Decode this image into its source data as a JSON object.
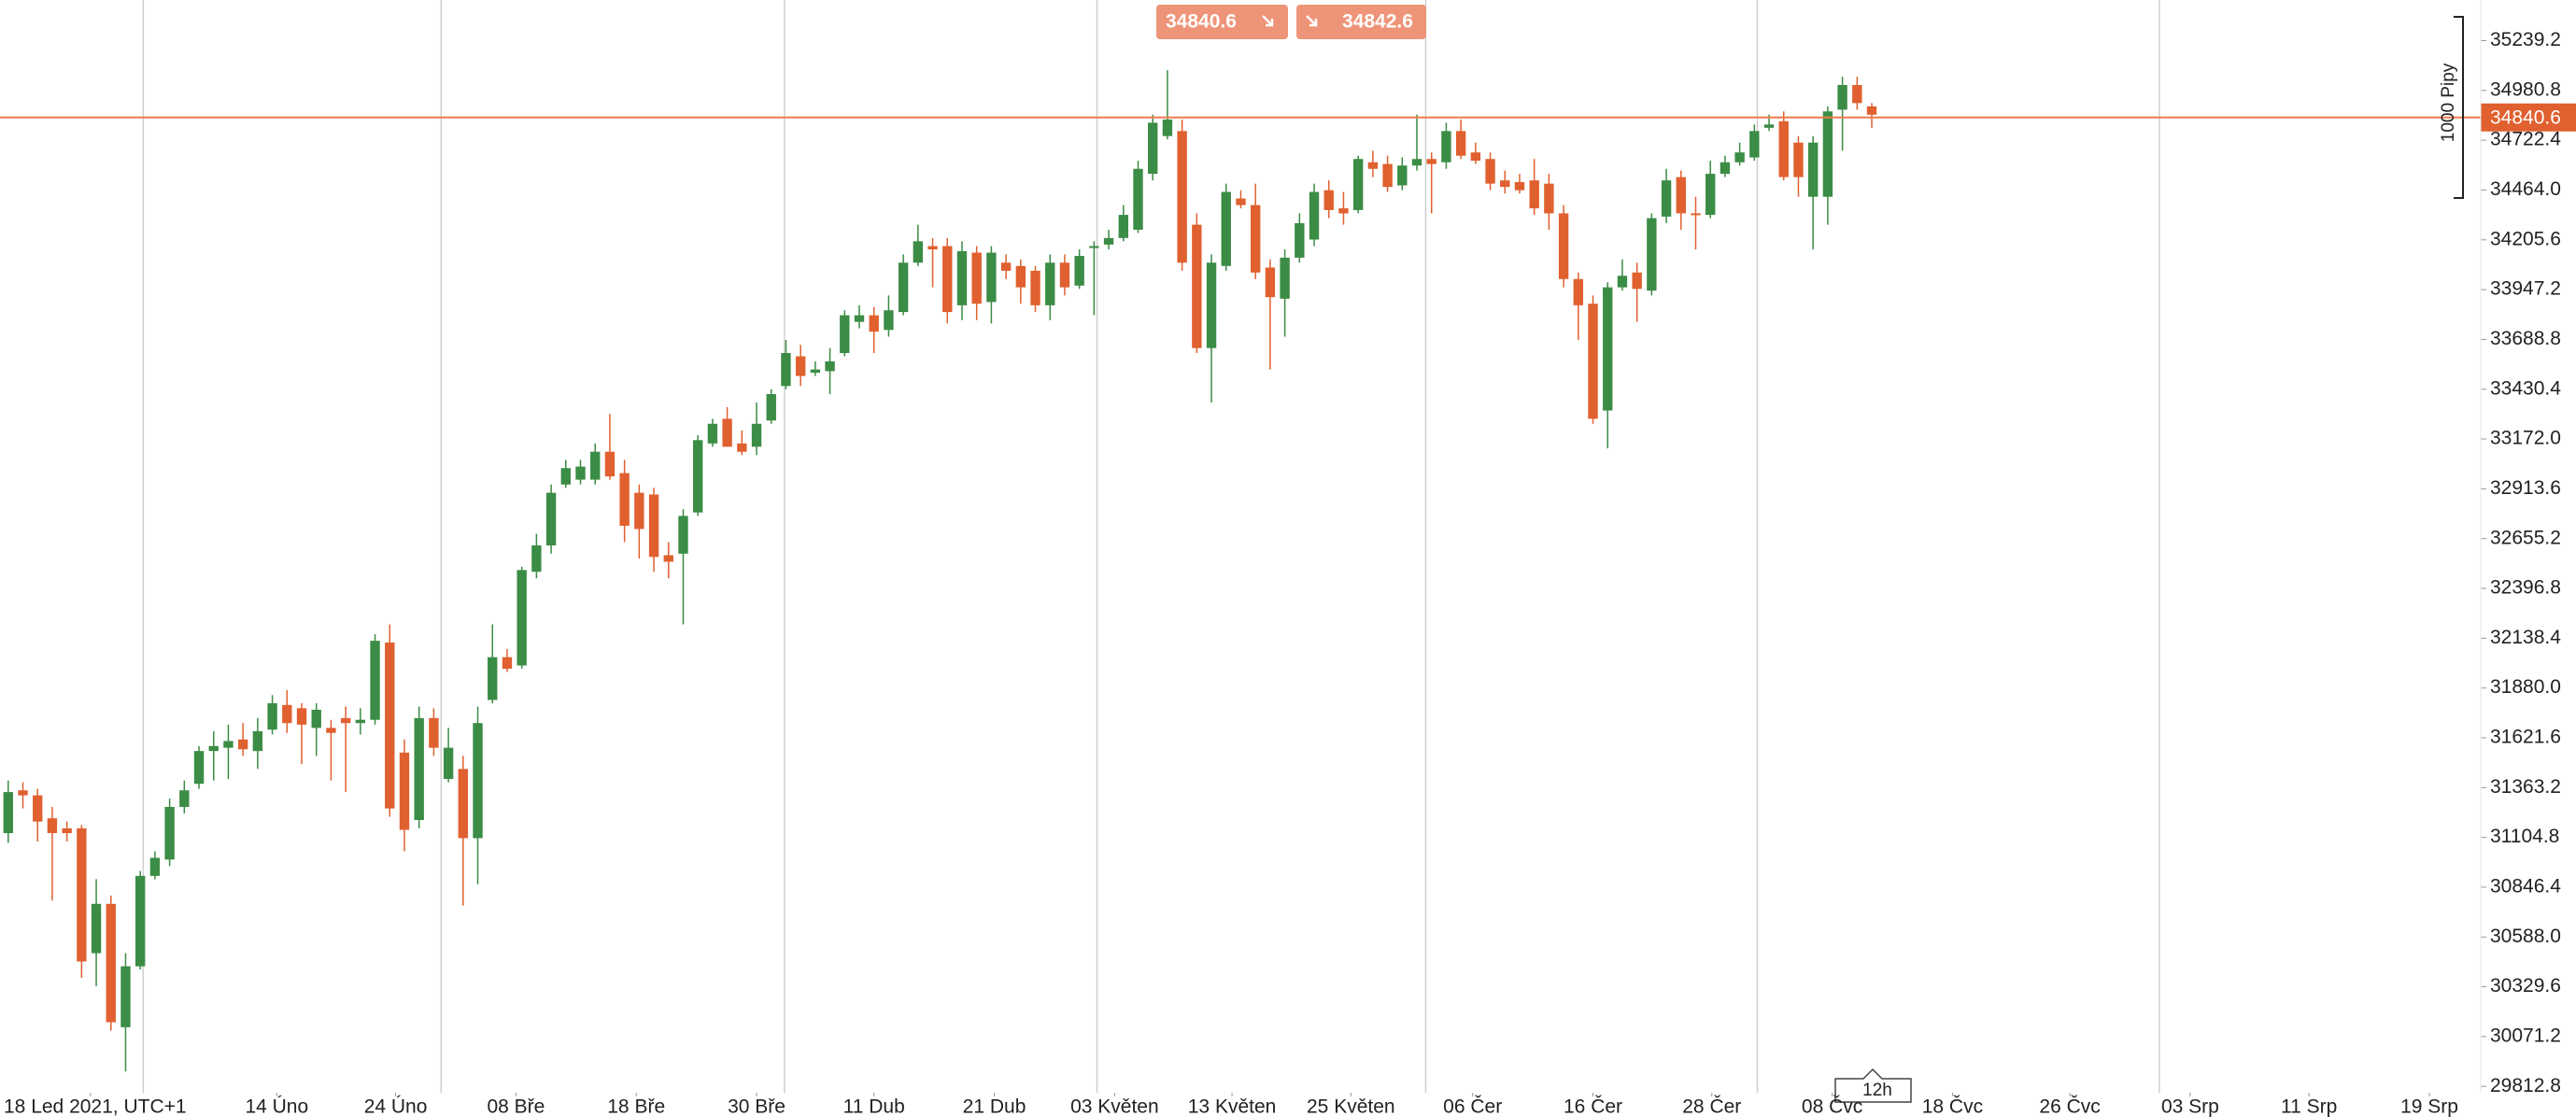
{
  "chart_data": {
    "type": "candlestick",
    "up_color": "#3b8c45",
    "down_color": "#e0602f",
    "xlim": [
      -0.56,
      168.5
    ],
    "ylim": [
      29780,
      35450
    ],
    "yticks": [
      35239.2,
      34980.8,
      34722.4,
      {
        "value": 34464,
        "label": "34464.0"
      },
      34205.6,
      33947.2,
      33688.8,
      33430.4,
      {
        "value": 33172,
        "label": "33172.0"
      },
      32913.6,
      32655.2,
      32396.8,
      32138.4,
      {
        "value": 31880,
        "label": "31880.0"
      },
      31621.6,
      31363.2,
      31104.8,
      30846.4,
      {
        "value": 30588,
        "label": "30588.0"
      },
      30329.6,
      30071.2,
      29812.8
    ],
    "xticks": [
      {
        "value": 5.6,
        "label": "18 Led 2021, UTC+1"
      },
      {
        "value": 18.3,
        "label": "14 Úno"
      },
      {
        "value": 26.4,
        "label": "24 Úno"
      },
      {
        "value": 34.6,
        "label": "08 Bře"
      },
      {
        "value": 42.8,
        "label": "18 Bře"
      },
      {
        "value": 51,
        "label": "30 Bře"
      },
      {
        "value": 59,
        "label": "11 Dub"
      },
      {
        "value": 67.2,
        "label": "21 Dub"
      },
      {
        "value": 75.4,
        "label": "03 Květen"
      },
      {
        "value": 83.4,
        "label": "13 Květen"
      },
      {
        "value": 91.5,
        "label": "25 Květen"
      },
      {
        "value": 99.8,
        "label": "06 Čer"
      },
      {
        "value": 108,
        "label": "16 Čer"
      },
      {
        "value": 116.1,
        "label": "28 Čer"
      },
      {
        "value": 124.3,
        "label": "08 Čvc"
      },
      {
        "value": 132.5,
        "label": "18 Čvc"
      },
      {
        "value": 140.5,
        "label": "26 Čvc"
      },
      {
        "value": 148.7,
        "label": "03 Srp"
      },
      {
        "value": 156.8,
        "label": "11 Srp"
      },
      {
        "value": 165,
        "label": "19 Srp"
      }
    ],
    "period_lines": [
      9.2,
      29.5,
      52.9,
      74.2,
      96.6,
      119.2,
      146.6
    ],
    "open": [
      31127,
      31349,
      31323,
      31204,
      31152,
      31152,
      30504,
      30760,
      30120,
      30436,
      30905,
      30990,
      31263,
      31383,
      31553,
      31570,
      31613,
      31553,
      31664,
      31792,
      31775,
      31673,
      31673,
      31724,
      31698,
      31715,
      32116,
      31545,
      31195,
      31724,
      31408,
      31460,
      31101,
      31818,
      32040,
      31997,
      32483,
      32620,
      32936,
      32961,
      32961,
      33106,
      32995,
      32893,
      32884,
      32569,
      32577,
      32791,
      33149,
      33277,
      33149,
      33132,
      33268,
      33447,
      33601,
      33516,
      33524,
      33618,
      33780,
      33814,
      33738,
      33831,
      34087,
      34173,
      34173,
      33866,
      34139,
      33883,
      34087,
      34070,
      34045,
      33866,
      34087,
      33968,
      34164,
      34181,
      34215,
      34258,
      34548,
      34744,
      34770,
      34284,
      33644,
      34070,
      34420,
      34386,
      34062,
      33900,
      34113,
      34207,
      34463,
      34369,
      34360,
      34608,
      34599,
      34488,
      34591,
      34625,
      34608,
      34770,
      34659,
      34625,
      34514,
      34505,
      34514,
      34497,
      34343,
      34002,
      33874,
      33320,
      33959,
      34036,
      33942,
      34326,
      34531,
      34343,
      34335,
      34548,
      34608,
      34633,
      34787,
      34821,
      34710,
      34429,
      34429,
      34881,
      35009,
      34898
    ],
    "high": [
      31400,
      31391,
      31357,
      31263,
      31187,
      31169,
      30888,
      30803,
      30504,
      30931,
      31033,
      31306,
      31400,
      31579,
      31656,
      31690,
      31698,
      31724,
      31843,
      31869,
      31801,
      31801,
      31715,
      31784,
      31775,
      32159,
      32210,
      31613,
      31784,
      31775,
      31673,
      31528,
      31784,
      32210,
      32082,
      32509,
      32680,
      32936,
      33064,
      33064,
      33149,
      33302,
      33064,
      32936,
      32919,
      32637,
      32808,
      33192,
      33277,
      33337,
      33217,
      33362,
      33430,
      33686,
      33661,
      33575,
      33644,
      33840,
      33866,
      33857,
      33917,
      34130,
      34284,
      34215,
      34215,
      34198,
      34173,
      34173,
      34130,
      34104,
      34070,
      34130,
      34130,
      34156,
      34198,
      34258,
      34386,
      34616,
      34855,
      35086,
      34830,
      34343,
      34130,
      34497,
      34463,
      34497,
      34104,
      34156,
      34343,
      34497,
      34514,
      34454,
      34642,
      34668,
      34642,
      34633,
      34855,
      34659,
      34813,
      34830,
      34710,
      34659,
      34565,
      34548,
      34625,
      34548,
      34386,
      34036,
      33917,
      33985,
      34104,
      34087,
      34343,
      34574,
      34565,
      34429,
      34616,
      34642,
      34710,
      34804,
      34855,
      34872,
      34744,
      34744,
      34898,
      35052,
      35052,
      34915
    ],
    "low": [
      31076,
      31255,
      31084,
      30777,
      31084,
      30376,
      30333,
      30103,
      29890,
      30419,
      30888,
      30956,
      31229,
      31357,
      31400,
      31408,
      31528,
      31460,
      31639,
      31647,
      31485,
      31528,
      31400,
      31340,
      31639,
      31690,
      31212,
      31033,
      31152,
      31528,
      31391,
      30751,
      30862,
      31801,
      31963,
      31980,
      32449,
      32577,
      32919,
      32936,
      32936,
      32961,
      32637,
      32552,
      32483,
      32449,
      32210,
      32773,
      33132,
      33132,
      33089,
      33089,
      33251,
      33430,
      33447,
      33499,
      33405,
      33601,
      33746,
      33618,
      33703,
      33814,
      34070,
      33959,
      33772,
      33789,
      33789,
      33772,
      34002,
      33874,
      33831,
      33789,
      33917,
      33951,
      33814,
      34156,
      34198,
      34241,
      34514,
      34727,
      34045,
      33618,
      33362,
      34045,
      34369,
      34002,
      33533,
      33703,
      34087,
      34173,
      34318,
      34284,
      34343,
      34531,
      34454,
      34463,
      34565,
      34343,
      34574,
      34625,
      34599,
      34463,
      34446,
      34446,
      34335,
      34258,
      33959,
      33686,
      33251,
      33123,
      33942,
      33780,
      33917,
      34292,
      34258,
      34156,
      34318,
      34531,
      34591,
      34616,
      34770,
      34514,
      34429,
      34156,
      34284,
      34668,
      34881,
      34787
    ],
    "close": [
      31340,
      31323,
      31187,
      31127,
      31127,
      30461,
      30760,
      30146,
      30436,
      30905,
      30999,
      31263,
      31349,
      31553,
      31579,
      31605,
      31562,
      31656,
      31801,
      31698,
      31690,
      31767,
      31647,
      31698,
      31715,
      32125,
      31255,
      31144,
      31724,
      31570,
      31570,
      31101,
      31698,
      32040,
      31980,
      32492,
      32620,
      32893,
      33021,
      33029,
      33106,
      32978,
      32722,
      32705,
      32560,
      32535,
      32773,
      33166,
      33251,
      33132,
      33106,
      33251,
      33405,
      33618,
      33499,
      33533,
      33575,
      33814,
      33814,
      33729,
      33840,
      34087,
      34198,
      34156,
      33831,
      34147,
      33874,
      34139,
      34045,
      33959,
      33866,
      34087,
      33959,
      34122,
      34173,
      34215,
      34335,
      34574,
      34813,
      34830,
      34087,
      33644,
      34087,
      34454,
      34386,
      34036,
      33908,
      34113,
      34292,
      34454,
      34360,
      34343,
      34625,
      34574,
      34480,
      34591,
      34625,
      34599,
      34770,
      34642,
      34616,
      34497,
      34480,
      34463,
      34369,
      34343,
      34002,
      33866,
      33277,
      33959,
      34019,
      33951,
      34318,
      34514,
      34343,
      34335,
      34548,
      34608,
      34659,
      34770,
      34804,
      34531,
      34531,
      34710,
      34872,
      35009,
      34915,
      34855
    ],
    "price_line": {
      "value": 34840.6,
      "label": "34840.6",
      "color": "#f07a4e"
    },
    "bid": {
      "value": 34840.6,
      "label": "34840.6"
    },
    "ask": {
      "value": 34842.6,
      "label": "34842.6"
    },
    "range_marker": "1000 Pipy",
    "timeframe": "12h"
  }
}
